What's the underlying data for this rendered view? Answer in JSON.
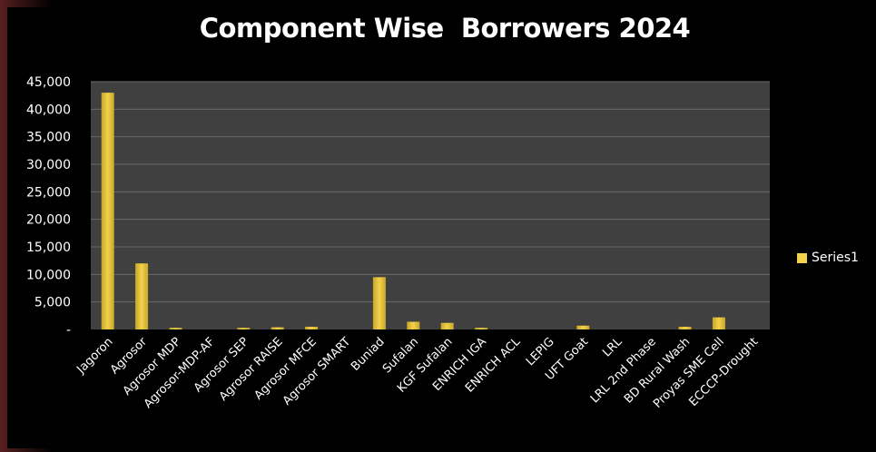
{
  "chart_data": {
    "type": "bar",
    "title": "Component Wise  Borrowers 2024",
    "xlabel": "",
    "ylabel": "",
    "ylim": [
      0,
      45000
    ],
    "yticks": [
      "-",
      "5,000",
      "10,000",
      "15,000",
      "20,000",
      "25,000",
      "30,000",
      "35,000",
      "40,000",
      "45,000"
    ],
    "ytick_values": [
      0,
      5000,
      10000,
      15000,
      20000,
      25000,
      30000,
      35000,
      40000,
      45000
    ],
    "grid": true,
    "legend_position": "right",
    "categories": [
      "Jagoron",
      "Agrosor",
      "Agrosor MDP",
      "Agrosor-MDP-AF",
      "Agrosor SEP",
      "Agrosor RAISE",
      "Agrosor MFCE",
      "Agrosor SMART",
      "Buniad",
      "Sufalan",
      "KGF Sufalan",
      "ENRICH IGA",
      "ENRICH ACL",
      "LEPIG",
      "UFT Goat",
      "LRL",
      "LRL 2nd Phase",
      "BD Rural Wash",
      "Proyas SME Cell",
      "ECCCP-Drought"
    ],
    "series": [
      {
        "name": "Series1",
        "values": [
          43000,
          12000,
          300,
          0,
          300,
          400,
          500,
          0,
          9500,
          1400,
          1200,
          300,
          0,
          0,
          700,
          0,
          0,
          500,
          2200,
          0
        ]
      }
    ]
  },
  "colors": {
    "bar": "#f2d24c",
    "bar_shadow": "#c9a628",
    "plot_background": "#404040",
    "gridline": "#6a6a6a",
    "text": "#ffffff"
  }
}
